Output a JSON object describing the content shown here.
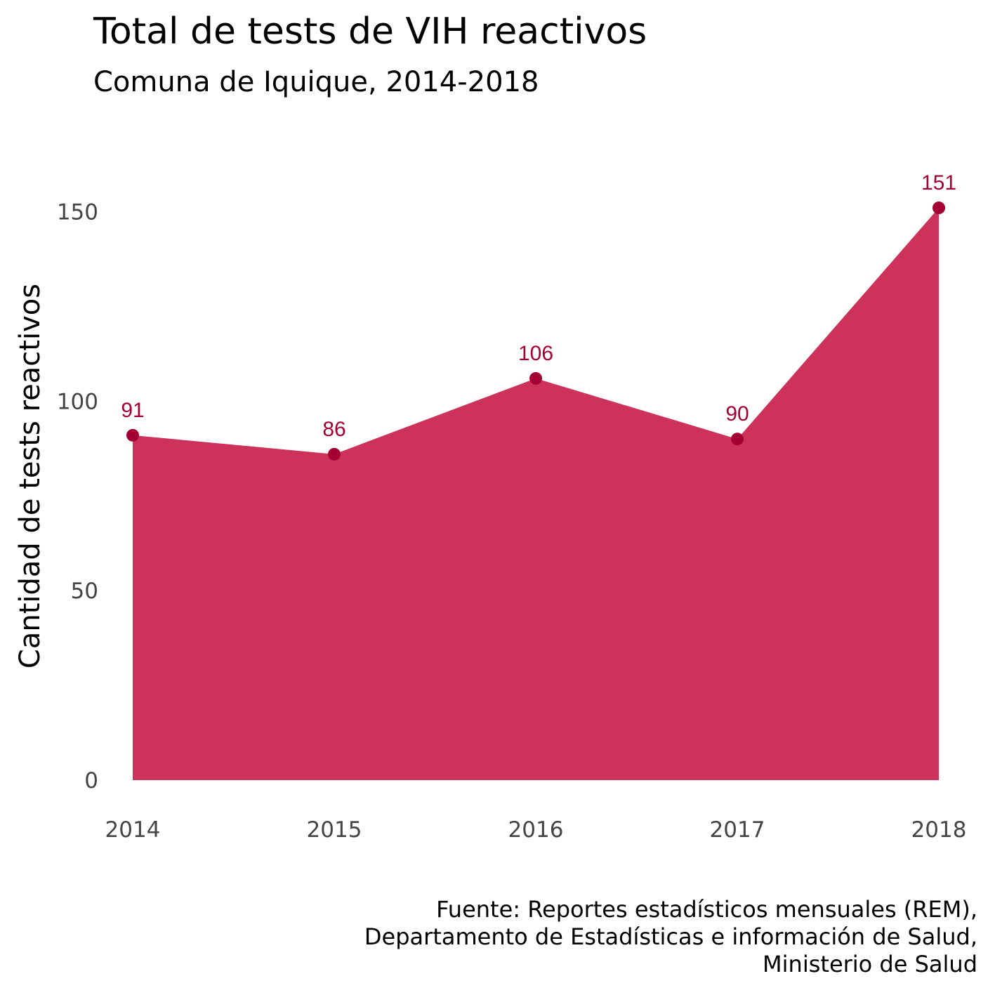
{
  "chart_data": {
    "type": "area",
    "title": "Total de tests de VIH reactivos",
    "subtitle": "Comuna de Iquique, 2014-2018",
    "ylabel": "Cantidad de tests reactivos",
    "xlabel": "",
    "categories": [
      "2014",
      "2015",
      "2016",
      "2017",
      "2018"
    ],
    "values": [
      91,
      86,
      106,
      90,
      151
    ],
    "data_labels": [
      "91",
      "86",
      "106",
      "90",
      "151"
    ],
    "ylim": [
      0,
      151
    ],
    "yticks": [
      0,
      50,
      100,
      150
    ],
    "ytick_labels": [
      "0",
      "50",
      "100",
      "150"
    ],
    "grid": false,
    "legend": "none",
    "caption": [
      "Fuente: Reportes estadísticos mensuales (REM),",
      "Departamento de Estadísticas e información de Salud,",
      "Ministerio de Salud"
    ],
    "colors": {
      "area": "#cd325a",
      "point": "#a50034",
      "label": "#a50034"
    }
  }
}
